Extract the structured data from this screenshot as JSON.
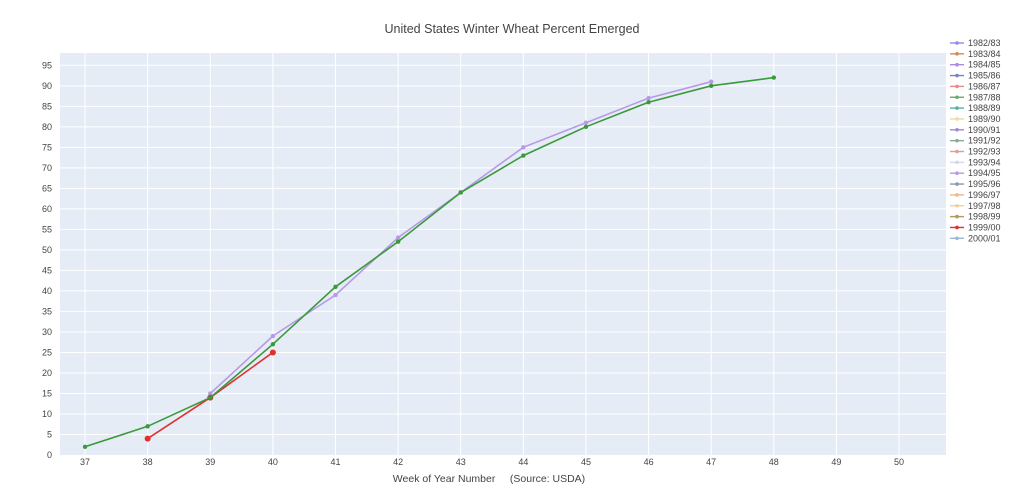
{
  "chart_data": {
    "type": "line",
    "title": "United States Winter Wheat Percent Emerged",
    "xlabel": "Week of Year Number     (Source: USDA)",
    "ylabel": "",
    "xlim": [
      36.6,
      50.75
    ],
    "ylim": [
      0,
      98
    ],
    "x_ticks": [
      37,
      38,
      39,
      40,
      41,
      42,
      43,
      44,
      45,
      46,
      47,
      48,
      49,
      50
    ],
    "y_ticks": [
      0,
      5,
      10,
      15,
      20,
      25,
      30,
      35,
      40,
      45,
      50,
      55,
      60,
      65,
      70,
      75,
      80,
      85,
      90,
      95
    ],
    "grid": true,
    "legend_position": "right",
    "series": [
      {
        "name": "1982/83",
        "color": "#8c8ce8",
        "points": []
      },
      {
        "name": "1983/84",
        "color": "#d08a5a",
        "points": []
      },
      {
        "name": "1984/85",
        "color": "#b088e8",
        "points": []
      },
      {
        "name": "1985/86",
        "color": "#7a84b8",
        "points": []
      },
      {
        "name": "1986/87",
        "color": "#e88a8a",
        "points": []
      },
      {
        "name": "1987/88",
        "color": "#6aa86a",
        "points": []
      },
      {
        "name": "1988/89",
        "color": "#5ab09a",
        "points": []
      },
      {
        "name": "1989/90",
        "color": "#f0d8a8",
        "points": []
      },
      {
        "name": "1990/91",
        "color": "#9a8ad8",
        "points": []
      },
      {
        "name": "1991/92",
        "color": "#8aa898",
        "points": []
      },
      {
        "name": "1992/93",
        "color": "#e89a9a",
        "points": []
      },
      {
        "name": "1993/94",
        "color": "#d8d8e8",
        "points": []
      },
      {
        "name": "1994/95",
        "color": "#b899e8",
        "points": [
          [
            39,
            15
          ],
          [
            40,
            29
          ],
          [
            41,
            39
          ],
          [
            42,
            53
          ],
          [
            43,
            64
          ],
          [
            44,
            75
          ],
          [
            45,
            81
          ],
          [
            46,
            87
          ],
          [
            47,
            91
          ]
        ]
      },
      {
        "name": "1995/96",
        "color": "#8898b8",
        "points": []
      },
      {
        "name": "1996/97",
        "color": "#f0b888",
        "points": []
      },
      {
        "name": "1997/98",
        "color": "#f0d0a0",
        "points": []
      },
      {
        "name": "1998/99",
        "color": "#b09a5a",
        "points": [
          [
            39,
            14
          ]
        ]
      },
      {
        "name": "1999/00",
        "color": "#e03030",
        "points": [
          [
            38,
            4
          ],
          [
            39,
            14
          ],
          [
            40,
            25
          ]
        ]
      },
      {
        "name": "2000/01",
        "color": "#9ab8d8",
        "points": []
      },
      {
        "name": "",
        "color": "#3a9a3a",
        "points": [
          [
            37,
            2
          ],
          [
            38,
            7
          ],
          [
            39,
            14
          ],
          [
            40,
            27
          ],
          [
            41,
            41
          ],
          [
            42,
            52
          ],
          [
            43,
            64
          ],
          [
            44,
            73
          ],
          [
            45,
            80
          ],
          [
            46,
            86
          ],
          [
            47,
            90
          ],
          [
            48,
            92
          ]
        ]
      }
    ]
  }
}
